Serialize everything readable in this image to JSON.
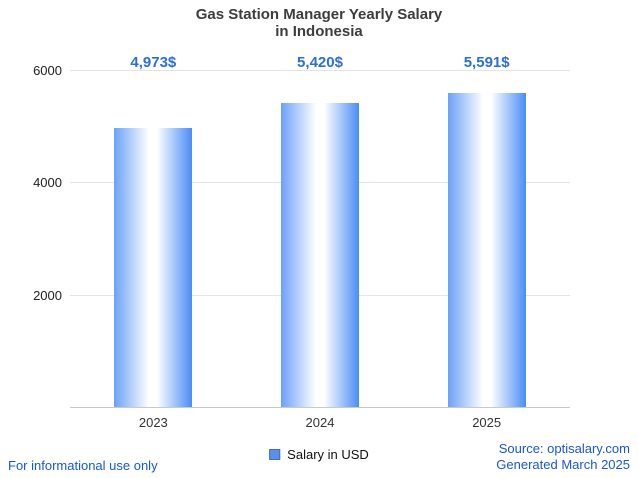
{
  "title": {
    "line1": "Gas Station Manager Yearly Salary",
    "line2": "in Indonesia"
  },
  "chart_data": {
    "type": "bar",
    "title": "Gas Station Manager Yearly Salary in Indonesia",
    "categories": [
      "2023",
      "2024",
      "2025"
    ],
    "values": [
      4973,
      5420,
      5591
    ],
    "value_labels": [
      "4,973$",
      "5,420$",
      "5,591$"
    ],
    "series_name": "Salary in USD",
    "xlabel": "",
    "ylabel": "",
    "ylim": [
      0,
      6000
    ],
    "yticks": [
      2000,
      4000,
      6000
    ],
    "grid": true,
    "legend_position": "bottom"
  },
  "legend": {
    "label": "Salary in USD"
  },
  "colors": {
    "value_label_blue": "#2b6fd9",
    "bar_edge_blue": "#4a8df6",
    "bar_center": "#ffffff",
    "link_blue": "#1a56db",
    "grid_gray": "#e4e4e4",
    "title_gray": "#3d3d3d"
  },
  "footer": {
    "disclaimer": "For informational use only",
    "source": "Source: optisalary.com",
    "generated": "Generated March 2025"
  }
}
